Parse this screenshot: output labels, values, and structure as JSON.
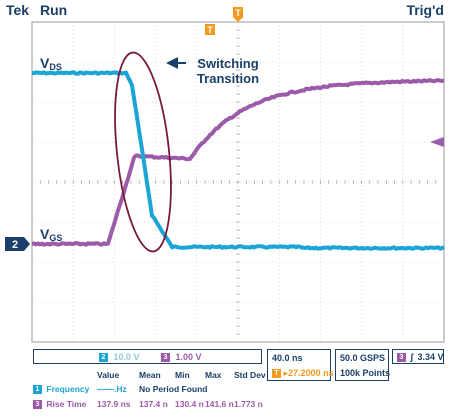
{
  "header": {
    "brand": "Tek",
    "state": "Run",
    "trigger": "Trig'd"
  },
  "markers": {
    "trigger_pos_flag": "T",
    "trigger_time_flag": "T",
    "ch2_marker": "2"
  },
  "labels": {
    "vds_main": "V",
    "vds_sub": "DS",
    "vgs_main": "V",
    "vgs_sub": "GS",
    "annotation_line1": "Switching",
    "annotation_line2": "Transition"
  },
  "status": {
    "ch2_num": "2",
    "ch2_scale": "10.0 V",
    "ch3_num": "3",
    "ch3_scale": "1.00 V",
    "timebase": "40.0 ns",
    "trig_pos_num": "T",
    "trig_pos": "▸27.2000 ns",
    "sample_rate": "50.0 GSPS",
    "record_length": "100k Points",
    "trig_src_num": "3",
    "trig_level": "3.34 V",
    "trig_slope_glyph": "∫"
  },
  "measurements": {
    "headers": [
      "Value",
      "Mean",
      "Min",
      "Max",
      "Std Dev"
    ],
    "rows": [
      {
        "ch": "1",
        "name": "Frequency",
        "value": "——.Hz",
        "note": "No Period Found"
      },
      {
        "ch": "3",
        "name": "Rise Time",
        "value": "137.9 ns",
        "mean": "137.4 n",
        "min": "130.4 n",
        "max": "141.6 n",
        "std": "1.773 n"
      }
    ]
  },
  "colors": {
    "ch1": "#1ba4d6",
    "ch3": "#9b5ba8",
    "ellipse": "#7a1a3a",
    "text": "#1a3f6b",
    "grid": "#9a9a9a",
    "trigger_marker": "#f39a1e"
  }
}
